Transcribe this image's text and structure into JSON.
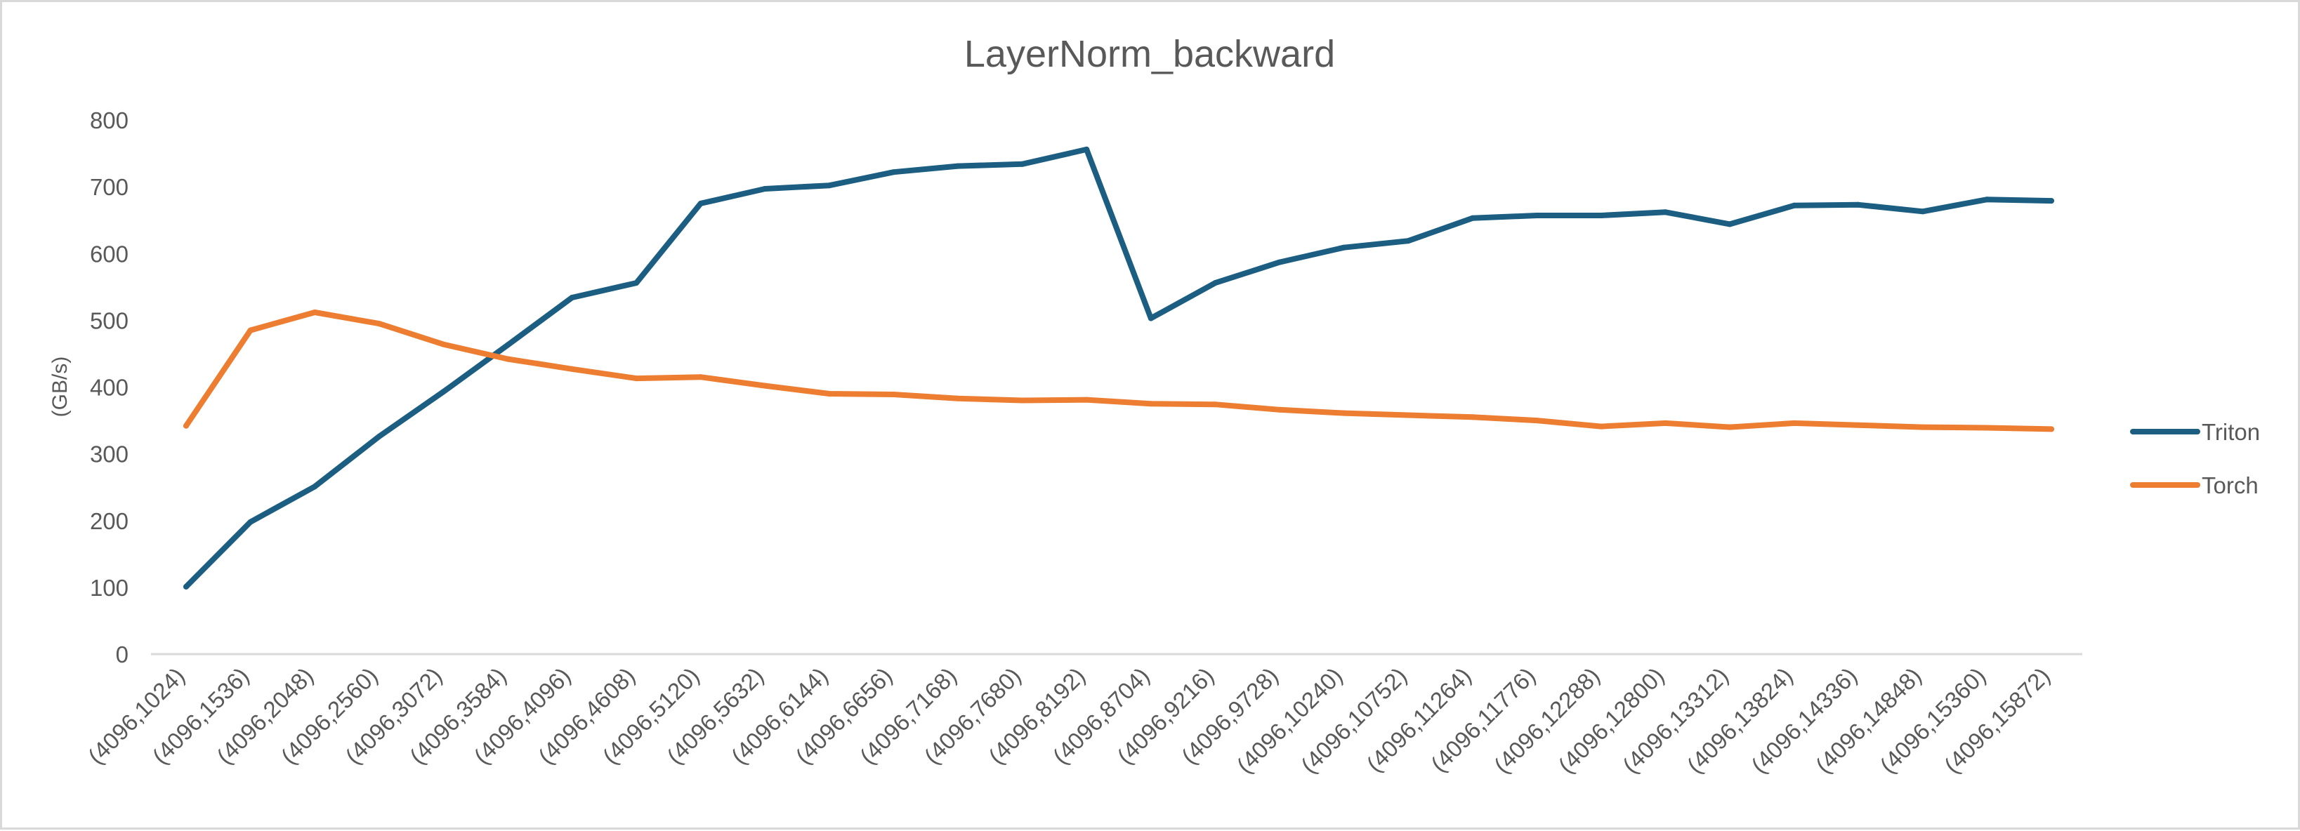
{
  "chart_data": {
    "type": "line",
    "title": "LayerNorm_backward",
    "xlabel": "",
    "ylabel": "(GB/s)",
    "ylim": [
      0,
      800
    ],
    "yticks": [
      "0",
      "100",
      "200",
      "300",
      "400",
      "500",
      "600",
      "700",
      "800"
    ],
    "grid": false,
    "legend_position": "right",
    "categories": [
      "(4096,1024)",
      "(4096,1536)",
      "(4096,2048)",
      "(4096,2560)",
      "(4096,3072)",
      "(4096,3584)",
      "(4096,4096)",
      "(4096,4608)",
      "(4096,5120)",
      "(4096,5632)",
      "(4096,6144)",
      "(4096,6656)",
      "(4096,7168)",
      "(4096,7680)",
      "(4096,8192)",
      "(4096,8704)",
      "(4096,9216)",
      "(4096,9728)",
      "(4096,10240)",
      "(4096,10752)",
      "(4096,11264)",
      "(4096,11776)",
      "(4096,12288)",
      "(4096,12800)",
      "(4096,13312)",
      "(4096,13824)",
      "(4096,14336)",
      "(4096,14848)",
      "(4096,15360)",
      "(4096,15872)"
    ],
    "series": [
      {
        "name": "Triton",
        "color": "#1b5e82",
        "values": [
          101,
          198,
          251,
          326,
          393,
          463,
          534,
          556,
          675,
          697,
          702,
          722,
          731,
          734,
          756,
          503,
          556,
          587,
          609,
          619,
          653,
          657,
          657,
          662,
          644,
          672,
          673,
          663,
          681,
          679
        ]
      },
      {
        "name": "Torch",
        "color": "#ed7d31",
        "values": [
          342,
          485,
          512,
          495,
          464,
          442,
          427,
          413,
          415,
          402,
          390,
          389,
          383,
          380,
          381,
          375,
          374,
          366,
          361,
          358,
          355,
          350,
          341,
          346,
          340,
          346,
          343,
          340,
          339,
          337
        ]
      }
    ]
  }
}
